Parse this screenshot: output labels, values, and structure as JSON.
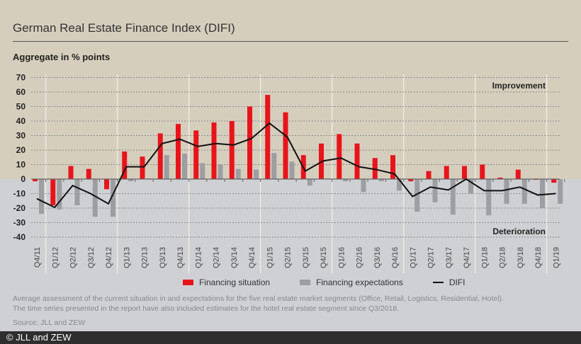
{
  "header": {
    "title": "German Real Estate Finance Index (DIFI)",
    "subtitle": "Aggregate in % points"
  },
  "chart_data": {
    "type": "bar",
    "title": "German Real Estate Finance Index (DIFI)",
    "ylabel": "Aggregate in % points",
    "ylim": [
      -40,
      70
    ],
    "yticks": [
      70,
      60,
      50,
      40,
      30,
      20,
      10,
      0,
      -10,
      -20,
      -30,
      -40
    ],
    "grid": true,
    "annotations": {
      "top": "Improvement",
      "bottom": "Deterioration"
    },
    "categories": [
      "Q4/11",
      "Q1/12",
      "Q2/12",
      "Q3/12",
      "Q4/12",
      "Q1/13",
      "Q2/13",
      "Q3/13",
      "Q4/13",
      "Q1/14",
      "Q2/14",
      "Q3/14",
      "Q4/14",
      "Q1/15",
      "Q2/15",
      "Q3/15",
      "Q4/15",
      "Q1/16",
      "Q2/16",
      "Q3/16",
      "Q4/16",
      "Q1/17",
      "Q2/17",
      "Q3/17",
      "Q4/17",
      "Q1/18",
      "Q2/18",
      "Q3/18",
      "Q4/18",
      "Q1/19"
    ],
    "series": [
      {
        "name": "Financing situation",
        "type": "bar",
        "color": "#e8141c",
        "values": [
          -1.5,
          -18,
          9,
          7,
          -7,
          19,
          15.5,
          31.5,
          38,
          33.5,
          39,
          40,
          50,
          58,
          46,
          16.5,
          24.5,
          31,
          24.5,
          14.5,
          16.5,
          -1.5,
          5.5,
          9,
          9,
          10,
          1,
          6.5,
          -0.5,
          -2.5
        ]
      },
      {
        "name": "Financing expectations",
        "type": "bar",
        "color": "#9d9ea2",
        "values": [
          -24,
          -21,
          -18,
          -26,
          -26,
          -1.5,
          0.5,
          16.5,
          17.5,
          11,
          10,
          7,
          6.5,
          18,
          12,
          -4.5,
          0.5,
          -1.5,
          -9,
          -1.5,
          -8,
          -22.5,
          -16,
          -24.5,
          -10,
          -25,
          -17,
          -17,
          -20,
          -17
        ]
      },
      {
        "name": "DIFI",
        "type": "line",
        "color": "#111111",
        "values": [
          -13.5,
          -19.5,
          -4.5,
          -10,
          -17,
          8.5,
          8.5,
          24.5,
          27.5,
          22.5,
          24.5,
          23.5,
          28,
          38.5,
          29,
          5.5,
          12.5,
          14.5,
          8.5,
          6.5,
          3.5,
          -12,
          -5.5,
          -7.5,
          0,
          -8,
          -8,
          -5.5,
          -11,
          -10
        ]
      }
    ],
    "legend": "bottom"
  },
  "notes": {
    "line1": "Average assessment of the current situation in and expectations for the five real estate market segments (Office, Retail, Logistics, Residential, Hotel).",
    "line2": "The time series presented in the report have also included estimates for the hotel real estate segment since Q3/2018.",
    "source": "Source: JLL and ZEW"
  },
  "footer": {
    "copyright": "© JLL and ZEW"
  }
}
